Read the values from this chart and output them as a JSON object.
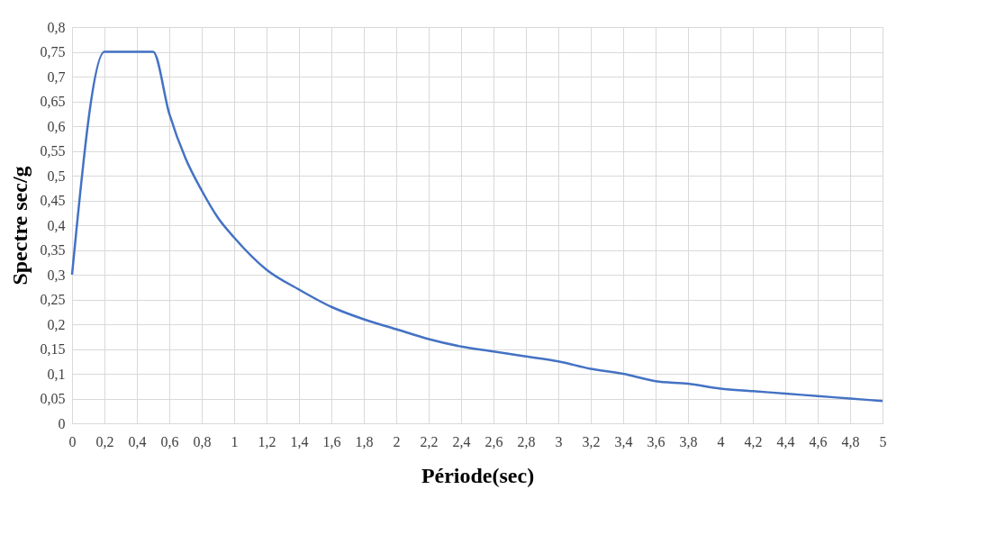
{
  "chart_data": {
    "type": "line",
    "xlabel": "Période(sec)",
    "ylabel": "Spectre sec/g",
    "x": [
      0,
      0.2,
      0.5,
      0.6,
      0.7,
      0.8,
      0.9,
      1.0,
      1.2,
      1.4,
      1.6,
      1.8,
      2.0,
      2.2,
      2.4,
      2.6,
      2.8,
      3.0,
      3.2,
      3.4,
      3.6,
      3.8,
      4.0,
      4.2,
      4.4,
      4.6,
      4.8,
      5.0
    ],
    "series": [
      {
        "color": "#4472c4",
        "values": [
          0.3,
          0.75,
          0.75,
          0.625,
          0.535,
          0.47,
          0.415,
          0.375,
          0.31,
          0.27,
          0.235,
          0.21,
          0.19,
          0.17,
          0.155,
          0.145,
          0.135,
          0.125,
          0.11,
          0.1,
          0.085,
          0.08,
          0.07,
          0.065,
          0.06,
          0.055,
          0.05,
          0.045
        ]
      }
    ],
    "xlim": [
      0,
      5
    ],
    "ylim": [
      0,
      0.8
    ],
    "xticks": [
      0,
      {
        "value": 0.2,
        "label": "0,2"
      },
      {
        "value": 0.4,
        "label": "0,4"
      },
      {
        "value": 0.6,
        "label": "0,6"
      },
      {
        "value": 0.8,
        "label": "0,8"
      },
      1,
      {
        "value": 1.2,
        "label": "1,2"
      },
      {
        "value": 1.4,
        "label": "1,4"
      },
      {
        "value": 1.6,
        "label": "1,6"
      },
      {
        "value": 1.8,
        "label": "1,8"
      },
      2,
      {
        "value": 2.2,
        "label": "2,2"
      },
      {
        "value": 2.4,
        "label": "2,4"
      },
      {
        "value": 2.6,
        "label": "2,6"
      },
      {
        "value": 2.8,
        "label": "2,8"
      },
      3,
      {
        "value": 3.2,
        "label": "3,2"
      },
      {
        "value": 3.4,
        "label": "3,4"
      },
      {
        "value": 3.6,
        "label": "3,6"
      },
      {
        "value": 3.8,
        "label": "3,8"
      },
      4,
      {
        "value": 4.2,
        "label": "4,2"
      },
      {
        "value": 4.4,
        "label": "4,4"
      },
      {
        "value": 4.6,
        "label": "4,6"
      },
      {
        "value": 4.8,
        "label": "4,8"
      },
      5
    ],
    "yticks": [
      0,
      {
        "value": 0.05,
        "label": "0,05"
      },
      {
        "value": 0.1,
        "label": "0,1"
      },
      {
        "value": 0.15,
        "label": "0,15"
      },
      {
        "value": 0.2,
        "label": "0,2"
      },
      {
        "value": 0.25,
        "label": "0,25"
      },
      {
        "value": 0.3,
        "label": "0,3"
      },
      {
        "value": 0.35,
        "label": "0,35"
      },
      {
        "value": 0.4,
        "label": "0,4"
      },
      {
        "value": 0.45,
        "label": "0,45"
      },
      {
        "value": 0.5,
        "label": "0,5"
      },
      {
        "value": 0.55,
        "label": "0,55"
      },
      {
        "value": 0.6,
        "label": "0,6"
      },
      {
        "value": 0.65,
        "label": "0,65"
      },
      {
        "value": 0.7,
        "label": "0,7"
      },
      {
        "value": 0.75,
        "label": "0,75"
      },
      {
        "value": 0.8,
        "label": "0,8"
      }
    ],
    "grid": true,
    "marker": "none",
    "line_style": "solid"
  }
}
